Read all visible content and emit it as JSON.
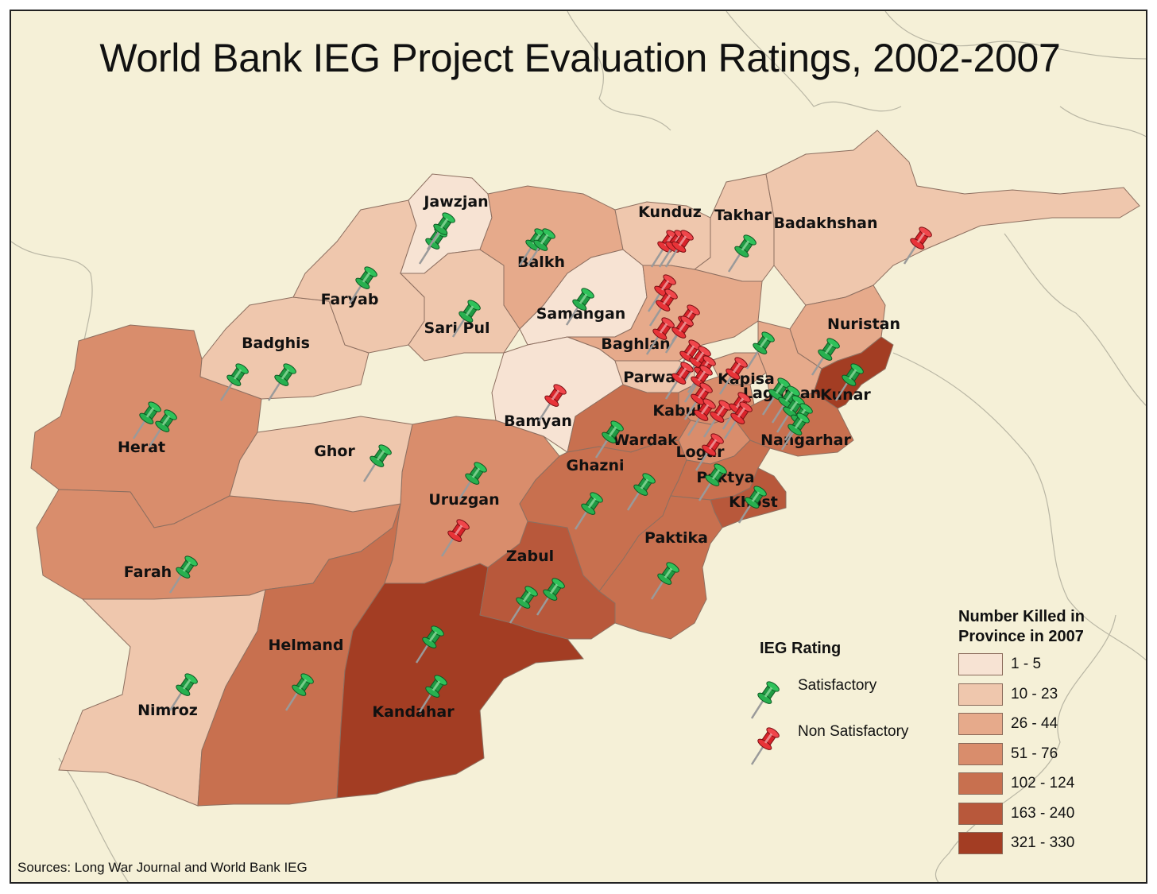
{
  "title": "World Bank IEG Project Evaluation Ratings, 2002-2007",
  "source": "Sources: Long War Journal and World Bank IEG",
  "colors": {
    "background": "#f5f0d7",
    "class_1": "#f7e3d3",
    "class_2": "#efc7ad",
    "class_3": "#e6aa8b",
    "class_4": "#d98d6c",
    "class_5": "#c8704f",
    "class_6": "#b8583b",
    "class_7": "#a33d23",
    "satisfactory_pin": "#1f9a43",
    "nonsatisfactory_pin": "#d8232a"
  },
  "rating_legend": {
    "title": "IEG Rating",
    "satisfactory": "Satisfactory",
    "non_satisfactory": "Non Satisfactory"
  },
  "killed_legend": {
    "title_line1": "Number Killed in",
    "title_line2": "Province in 2007",
    "classes": [
      "1 - 5",
      "10 - 23",
      "26 - 44",
      "51 - 76",
      "102 - 124",
      "163 - 240",
      "321 - 330"
    ]
  },
  "provinces": [
    {
      "name": "Jawzjan",
      "class": "1 - 5"
    },
    {
      "name": "Balkh",
      "class": "26 - 44"
    },
    {
      "name": "Kunduz",
      "class": "10 - 23"
    },
    {
      "name": "Takhar",
      "class": "10 - 23"
    },
    {
      "name": "Badakhshan",
      "class": "10 - 23"
    },
    {
      "name": "Faryab",
      "class": "10 - 23"
    },
    {
      "name": "Samangan",
      "class": "1 - 5"
    },
    {
      "name": "Sari Pul",
      "class": "10 - 23"
    },
    {
      "name": "Badghis",
      "class": "10 - 23"
    },
    {
      "name": "Baghlan",
      "class": "26 - 44"
    },
    {
      "name": "Nuristan",
      "class": "26 - 44"
    },
    {
      "name": "Parwan",
      "class": "10 - 23"
    },
    {
      "name": "Kapisa",
      "class": "26 - 44"
    },
    {
      "name": "Laghman",
      "class": "26 - 44"
    },
    {
      "name": "Kunar",
      "class": "321 - 330"
    },
    {
      "name": "Herat",
      "class": "51 - 76"
    },
    {
      "name": "Bamyan",
      "class": "1 - 5"
    },
    {
      "name": "Kabul",
      "class": "51 - 76"
    },
    {
      "name": "Ghor",
      "class": "10 - 23"
    },
    {
      "name": "Wardak",
      "class": "102 - 124"
    },
    {
      "name": "Nangarhar",
      "class": "102 - 124"
    },
    {
      "name": "Logar",
      "class": "51 - 76"
    },
    {
      "name": "Ghazni",
      "class": "102 - 124"
    },
    {
      "name": "Paktya",
      "class": "102 - 124"
    },
    {
      "name": "Uruzgan",
      "class": "51 - 76"
    },
    {
      "name": "Khost",
      "class": "102 - 124"
    },
    {
      "name": "Farah",
      "class": "51 - 76"
    },
    {
      "name": "Paktika",
      "class": "102 - 124"
    },
    {
      "name": "Zabul",
      "class": "163 - 240"
    },
    {
      "name": "Helmand",
      "class": "102 - 124"
    },
    {
      "name": "Nimroz",
      "class": "10 - 23"
    },
    {
      "name": "Kandahar",
      "class": "321 - 330"
    }
  ],
  "pins": {
    "satisfactory_count": 37,
    "non_satisfactory_count": 26
  }
}
